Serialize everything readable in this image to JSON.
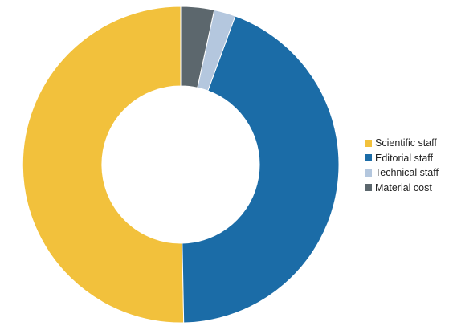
{
  "chart_data": {
    "type": "pie",
    "variant": "donut",
    "categories": [
      "Scientific staff",
      "Editorial staff",
      "Technical staff",
      "Material cost"
    ],
    "values": [
      50.3,
      44.1,
      2.2,
      3.4
    ],
    "colors": [
      "#f2c13c",
      "#1b6ca7",
      "#b4c7de",
      "#5c676d"
    ],
    "start": "top",
    "direction": "counterclockwise",
    "legend_position": "right",
    "title": ""
  }
}
